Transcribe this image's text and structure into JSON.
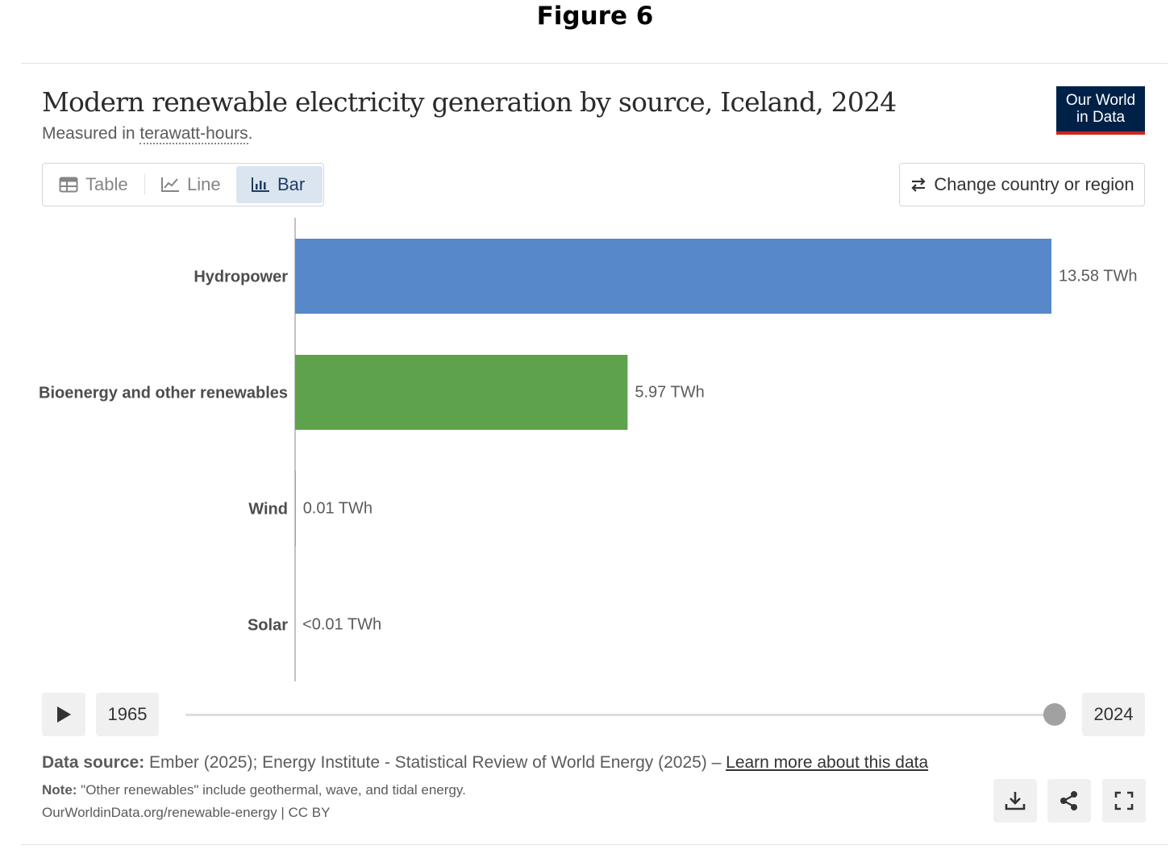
{
  "figure": {
    "heading": "Figure 6"
  },
  "header": {
    "title": "Modern renewable electricity generation by source, Iceland, 2024",
    "subtitle_prefix": "Measured in ",
    "subtitle_unit": "terawatt-hours",
    "subtitle_suffix": ".",
    "logo_line1": "Our World",
    "logo_line2": "in Data"
  },
  "tabs": [
    {
      "label": "Table",
      "icon": "table-icon"
    },
    {
      "label": "Line",
      "icon": "line-chart-icon"
    },
    {
      "label": "Bar",
      "icon": "bar-chart-icon",
      "active": true
    }
  ],
  "controls": {
    "change_country_label": "Change country or region"
  },
  "chart_data": {
    "type": "bar",
    "orientation": "horizontal",
    "title": "Modern renewable electricity generation by source, Iceland, 2024",
    "unit": "TWh",
    "categories": [
      "Hydropower",
      "Bioenergy and other renewables",
      "Wind",
      "Solar"
    ],
    "values": [
      13.58,
      5.97,
      0.01,
      0.001
    ],
    "value_labels": [
      "13.58 TWh",
      "5.97 TWh",
      "0.01 TWh",
      "<0.01 TWh"
    ],
    "colors": [
      "#5788c9",
      "#5fa24c",
      "#5788c9",
      "#5788c9"
    ],
    "xlim": [
      0,
      13.58
    ]
  },
  "timeline": {
    "start_year": "1965",
    "end_year": "2024"
  },
  "footer": {
    "source_label": "Data source:",
    "source_text": " Ember (2025); Energy Institute - Statistical Review of World Energy (2025) – ",
    "learn_more": "Learn more about this data",
    "note_label": "Note:",
    "note_text": " \"Other renewables\" include geothermal, wave, and tidal energy.",
    "credit": "OurWorldinData.org/renewable-energy | CC BY"
  }
}
